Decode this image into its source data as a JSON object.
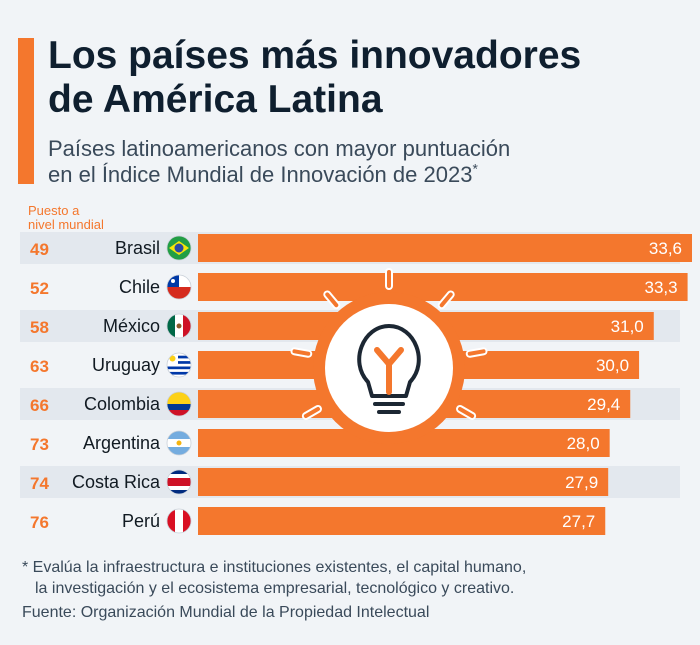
{
  "title_line1": "Los países más innovadores",
  "title_line2": "de América Latina",
  "subtitle_line1": "Países latinoamericanos con mayor puntuación",
  "subtitle_line2": "en el Índice Mundial de Innovación de 2023",
  "subtitle_marker": "*",
  "rank_header_line1": "Puesto a",
  "rank_header_line2": "nivel mundial",
  "footnote_line1": "* Evalúa la infraestructura e instituciones existentes, el capital humano,",
  "footnote_line2": "la investigación y el ecosistema empresarial, tecnológico y creativo.",
  "source": "Fuente: Organización Mundial de la Propiedad Intelectual",
  "colors": {
    "accent": "#f4772d",
    "title": "#0f1f2f",
    "row_band": "#e3e8ee",
    "background": "#f1f4f7"
  },
  "chart_data": {
    "type": "bar",
    "orientation": "horizontal",
    "title": "Los países más innovadores de América Latina",
    "subtitle": "Países latinoamericanos con mayor puntuación en el Índice Mundial de Innovación de 2023",
    "categories": [
      "Brasil",
      "Chile",
      "México",
      "Uruguay",
      "Colombia",
      "Argentina",
      "Costa Rica",
      "Perú"
    ],
    "ranks": [
      "49",
      "52",
      "58",
      "63",
      "66",
      "73",
      "74",
      "76"
    ],
    "values": [
      33.6,
      33.3,
      31.0,
      30.0,
      29.4,
      28.0,
      27.9,
      27.7
    ],
    "value_labels": [
      "33,6",
      "33,3",
      "31,0",
      "30,0",
      "29,4",
      "28,0",
      "27,9",
      "27,7"
    ],
    "flags": [
      "brazil",
      "chile",
      "mexico",
      "uruguay",
      "colombia",
      "argentina",
      "costa-rica",
      "peru"
    ],
    "xlim": [
      0,
      33.6
    ],
    "xlabel": "",
    "ylabel": "",
    "grid": false,
    "legend": "none",
    "decoration": "lightbulb-icon"
  }
}
